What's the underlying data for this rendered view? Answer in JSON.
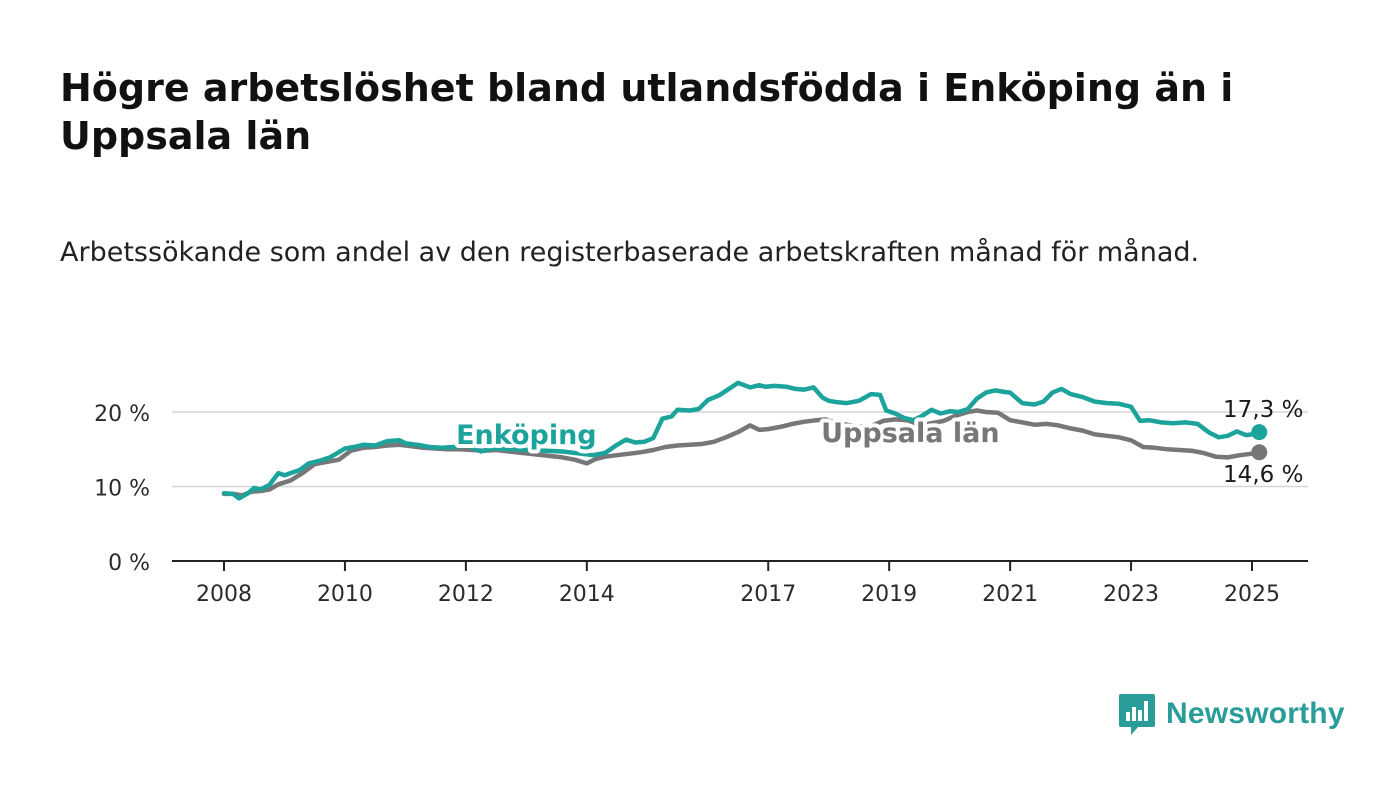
{
  "title": "Högre arbetslöshet bland utlandsfödda i Enköping än i Uppsala län",
  "subtitle": "Arbetssökande som andel av den registerbaserade arbetskraften månad för månad.",
  "brand": {
    "name": "Newsworthy",
    "color": "#2a9d9a"
  },
  "chart_data": {
    "type": "line",
    "ylim": [
      0,
      25
    ],
    "xlim": [
      2007.15,
      2025.9
    ],
    "y_ticks": [
      {
        "value": 0,
        "label": "0 %"
      },
      {
        "value": 10,
        "label": "10 %"
      },
      {
        "value": 20,
        "label": "20 %"
      }
    ],
    "x_ticks": [
      {
        "value": 2008,
        "label": "2008"
      },
      {
        "value": 2010,
        "label": "2010"
      },
      {
        "value": 2012,
        "label": "2012"
      },
      {
        "value": 2014,
        "label": "2014"
      },
      {
        "value": 2017,
        "label": "2017"
      },
      {
        "value": 2019,
        "label": "2019"
      },
      {
        "value": 2021,
        "label": "2021"
      },
      {
        "value": 2023,
        "label": "2023"
      },
      {
        "value": 2025,
        "label": "2025"
      }
    ],
    "grid": true,
    "legend": "inline labels",
    "series": [
      {
        "name": "Enköping",
        "color": "#1ba39c",
        "end_label": "17,3 %",
        "x": [
          2008.0,
          2008.15,
          2008.25,
          2008.4,
          2008.5,
          2008.6,
          2008.75,
          2008.9,
          2009.0,
          2009.1,
          2009.25,
          2009.4,
          2009.6,
          2009.75,
          2009.9,
          2010.0,
          2010.15,
          2010.3,
          2010.5,
          2010.7,
          2010.9,
          2011.0,
          2011.2,
          2011.4,
          2011.6,
          2011.8,
          2012.0,
          2012.15,
          2012.25,
          2012.4,
          2012.5,
          2013.6,
          2013.9,
          2014.1,
          2014.3,
          2014.5,
          2014.65,
          2014.8,
          2014.95,
          2015.1,
          2015.25,
          2015.4,
          2015.5,
          2015.7,
          2015.85,
          2016.0,
          2016.2,
          2016.35,
          2016.5,
          2016.7,
          2016.85,
          2016.95,
          2017.1,
          2017.3,
          2017.45,
          2017.6,
          2017.75,
          2017.9,
          2018.0,
          2018.15,
          2018.3,
          2018.5,
          2018.7,
          2018.85,
          2018.95,
          2019.1,
          2019.25,
          2019.4,
          2019.55,
          2019.7,
          2019.85,
          2020.0,
          2020.15,
          2020.3,
          2020.45,
          2020.6,
          2020.75,
          2020.9,
          2021.0,
          2021.2,
          2021.4,
          2021.55,
          2021.7,
          2021.85,
          2022.0,
          2022.2,
          2022.4,
          2022.6,
          2022.8,
          2022.95,
          2023.0,
          2023.15,
          2023.3,
          2023.5,
          2023.7,
          2023.9,
          2024.1,
          2024.3,
          2024.45,
          2024.6,
          2024.75,
          2024.9,
          2025.0,
          2025.12
        ],
        "values": [
          9.1,
          9.0,
          8.4,
          9.1,
          9.8,
          9.6,
          10.2,
          11.8,
          11.5,
          11.8,
          12.2,
          13.1,
          13.5,
          13.9,
          14.6,
          15.1,
          15.3,
          15.6,
          15.5,
          16.1,
          16.2,
          15.8,
          15.6,
          15.3,
          15.2,
          15.3,
          15.5,
          15.1,
          14.7,
          15.1,
          15.1,
          14.7,
          14.4,
          14.2,
          14.5,
          15.6,
          16.3,
          15.9,
          16.0,
          16.5,
          19.1,
          19.4,
          20.3,
          20.2,
          20.4,
          21.6,
          22.3,
          23.1,
          23.9,
          23.3,
          23.6,
          23.4,
          23.5,
          23.4,
          23.1,
          23.0,
          23.3,
          21.9,
          21.5,
          21.3,
          21.2,
          21.5,
          22.4,
          22.3,
          20.2,
          19.8,
          19.2,
          18.9,
          19.5,
          20.3,
          19.8,
          20.1,
          20.0,
          20.4,
          21.8,
          22.6,
          22.9,
          22.7,
          22.6,
          21.2,
          21.0,
          21.4,
          22.6,
          23.1,
          22.4,
          22.0,
          21.4,
          21.2,
          21.1,
          20.8,
          20.7,
          18.8,
          18.9,
          18.6,
          18.5,
          18.6,
          18.4,
          17.2,
          16.6,
          16.8,
          17.4,
          16.9,
          17.0,
          17.3
        ]
      },
      {
        "name": "Uppsala län",
        "color": "#77777a",
        "end_label": "14,6 %",
        "x": [
          2008.0,
          2008.15,
          2008.3,
          2008.45,
          2008.6,
          2008.75,
          2008.9,
          2009.1,
          2009.3,
          2009.5,
          2009.7,
          2009.9,
          2010.1,
          2010.3,
          2010.5,
          2010.7,
          2010.9,
          2011.1,
          2011.3,
          2011.5,
          2011.7,
          2011.9,
          2012.1,
          2012.3,
          2012.5,
          2013.6,
          2013.8,
          2014.0,
          2014.15,
          2014.3,
          2014.5,
          2014.7,
          2014.9,
          2015.1,
          2015.3,
          2015.5,
          2015.7,
          2015.9,
          2016.1,
          2016.3,
          2016.5,
          2016.7,
          2016.85,
          2017.0,
          2017.2,
          2017.4,
          2017.6,
          2017.8,
          2017.95,
          2018.1,
          2018.3,
          2018.5,
          2018.7,
          2018.9,
          2019.1,
          2019.3,
          2019.5,
          2019.7,
          2019.9,
          2020.1,
          2020.3,
          2020.45,
          2020.6,
          2020.8,
          2021.0,
          2021.2,
          2021.4,
          2021.6,
          2021.8,
          2022.0,
          2022.2,
          2022.4,
          2022.6,
          2022.8,
          2023.0,
          2023.2,
          2023.4,
          2023.6,
          2023.8,
          2024.0,
          2024.2,
          2024.4,
          2024.6,
          2024.8,
          2025.0,
          2025.12
        ],
        "values": [
          9.0,
          9.0,
          8.8,
          9.3,
          9.4,
          9.6,
          10.3,
          10.8,
          11.8,
          13.0,
          13.3,
          13.6,
          14.8,
          15.2,
          15.3,
          15.5,
          15.6,
          15.4,
          15.2,
          15.1,
          15.0,
          15.0,
          14.9,
          14.8,
          14.9,
          13.9,
          13.6,
          13.1,
          13.7,
          14.0,
          14.2,
          14.4,
          14.6,
          14.9,
          15.3,
          15.5,
          15.6,
          15.7,
          16.0,
          16.6,
          17.3,
          18.2,
          17.6,
          17.7,
          18.0,
          18.4,
          18.7,
          18.9,
          19.0,
          18.6,
          18.3,
          18.0,
          18.1,
          18.8,
          19.0,
          18.9,
          18.2,
          18.5,
          18.8,
          19.5,
          20.0,
          20.2,
          20.0,
          19.9,
          18.9,
          18.6,
          18.3,
          18.4,
          18.2,
          17.8,
          17.5,
          17.0,
          16.8,
          16.6,
          16.2,
          15.3,
          15.2,
          15.0,
          14.9,
          14.8,
          14.5,
          14.0,
          13.9,
          14.2,
          14.4,
          14.6
        ]
      }
    ],
    "inline_labels": [
      {
        "series": "Enköping",
        "text": "Enköping",
        "x": 2013.0,
        "y": 15.7
      },
      {
        "series": "Uppsala län",
        "text": "Uppsala län",
        "x": 2019.35,
        "y": 16.0
      }
    ]
  }
}
